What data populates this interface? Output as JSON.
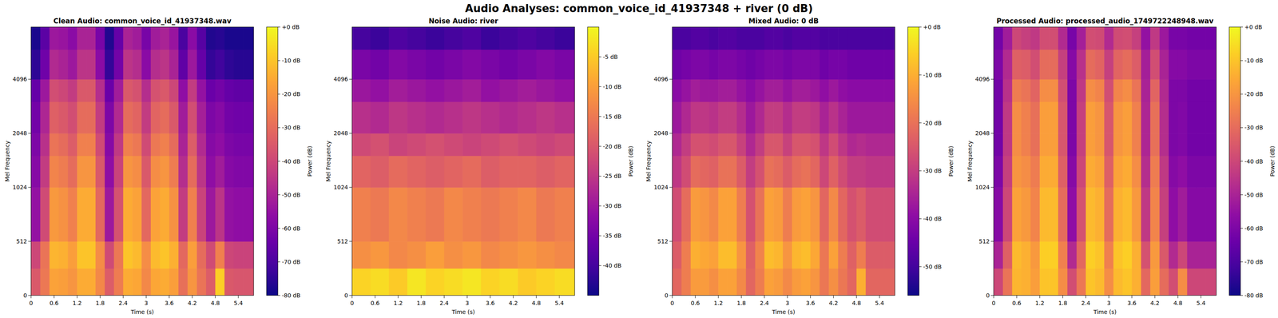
{
  "title": "Audio Analyses: common_voice_id_41937348 + river (0 dB)",
  "chart_data": [
    {
      "type": "heatmap",
      "title": "Clean Audio: common_voice_id_41937348.wav",
      "x_label": "Time (s)",
      "y_label": "Mel Frequency",
      "xlim": [
        0,
        5.8
      ],
      "xticks": [
        0,
        0.6,
        1.2,
        1.8,
        2.4,
        3,
        3.6,
        4.2,
        4.8,
        5.4
      ],
      "ylim": [
        0,
        8000
      ],
      "yticks": [
        0,
        512,
        1024,
        2048,
        4096
      ],
      "log": "y",
      "x_bins": [
        0,
        0.24,
        0.48,
        0.72,
        0.96,
        1.2,
        1.44,
        1.68,
        1.92,
        2.16,
        2.4,
        2.64,
        2.88,
        3.12,
        3.36,
        3.6,
        3.84,
        4.08,
        4.32,
        4.56,
        4.8,
        5.04,
        5.28,
        5.52,
        5.8
      ],
      "y_bins": [
        0,
        256,
        512,
        1024,
        1536,
        2048,
        3072,
        4096,
        6000,
        8000
      ],
      "cells": [
        [
          -35,
          -27,
          -17,
          -18,
          -20,
          -15,
          -15,
          -23,
          -34,
          -26,
          -15,
          -16,
          -23,
          -16,
          -15,
          -18,
          -29,
          -20,
          -28,
          -34,
          -8,
          -35,
          -36,
          -36
        ],
        [
          -40,
          -28,
          -13,
          -14,
          -18,
          -10,
          -10,
          -22,
          -39,
          -27,
          -10,
          -12,
          -22,
          -12,
          -10,
          -14,
          -31,
          -18,
          -30,
          -39,
          -25,
          -40,
          -41,
          -41
        ],
        [
          -55,
          -39,
          -19,
          -21,
          -25,
          -15,
          -15,
          -31,
          -53,
          -37,
          -15,
          -17,
          -31,
          -17,
          -15,
          -21,
          -43,
          -25,
          -41,
          -53,
          -45,
          -55,
          -56,
          -56
        ],
        [
          -58,
          -43,
          -24,
          -26,
          -30,
          -20,
          -20,
          -35,
          -56,
          -41,
          -20,
          -22,
          -35,
          -22,
          -20,
          -26,
          -47,
          -30,
          -45,
          -56,
          -52,
          -58,
          -59,
          -59
        ],
        [
          -60,
          -46,
          -28,
          -30,
          -34,
          -25,
          -25,
          -39,
          -58,
          -44,
          -25,
          -27,
          -39,
          -27,
          -25,
          -30,
          -50,
          -34,
          -48,
          -58,
          -56,
          -60,
          -61,
          -61
        ],
        [
          -62,
          -49,
          -33,
          -35,
          -38,
          -30,
          -30,
          -43,
          -60,
          -48,
          -30,
          -32,
          -43,
          -32,
          -30,
          -35,
          -52,
          -38,
          -51,
          -60,
          -58,
          -62,
          -63,
          -63
        ],
        [
          -65,
          -53,
          -38,
          -40,
          -43,
          -35,
          -35,
          -47,
          -64,
          -52,
          -35,
          -37,
          -47,
          -37,
          -35,
          -40,
          -56,
          -43,
          -55,
          -64,
          -62,
          -65,
          -66,
          -66
        ],
        [
          -75,
          -63,
          -48,
          -50,
          -53,
          -45,
          -45,
          -57,
          -74,
          -62,
          -45,
          -47,
          -57,
          -47,
          -45,
          -50,
          -66,
          -53,
          -65,
          -74,
          -72,
          -75,
          -76,
          -76
        ],
        [
          -78,
          -67,
          -53,
          -54,
          -57,
          -50,
          -50,
          -61,
          -77,
          -65,
          -50,
          -52,
          -61,
          -52,
          -50,
          -54,
          -70,
          -57,
          -68,
          -77,
          -76,
          -78,
          -78,
          -78
        ]
      ],
      "colorbar": {
        "label": "Power (dB)",
        "range": [
          -80,
          0
        ],
        "ticks": [
          {
            "value": 0,
            "label": "+0 dB"
          },
          {
            "value": -10,
            "label": "-10 dB"
          },
          {
            "value": -20,
            "label": "-20 dB"
          },
          {
            "value": -30,
            "label": "-30 dB"
          },
          {
            "value": -40,
            "label": "-40 dB"
          },
          {
            "value": -50,
            "label": "-50 dB"
          },
          {
            "value": -60,
            "label": "-60 dB"
          },
          {
            "value": -70,
            "label": "-70 dB"
          },
          {
            "value": -80,
            "label": "-80 dB"
          }
        ]
      }
    },
    {
      "type": "heatmap",
      "title": "Noise Audio: river",
      "x_label": "Time (s)",
      "y_label": "Mel Frequency",
      "xlim": [
        0,
        5.8
      ],
      "xticks": [
        0,
        0.6,
        1.2,
        1.8,
        2.4,
        3,
        3.6,
        4.2,
        4.8,
        5.4
      ],
      "ylim": [
        0,
        8000
      ],
      "yticks": [
        0,
        512,
        1024,
        2048,
        4096
      ],
      "log": "y",
      "x_bins": [
        0,
        0.48,
        0.96,
        1.44,
        1.92,
        2.4,
        2.88,
        3.36,
        3.84,
        4.32,
        4.8,
        5.28,
        5.8
      ],
      "y_bins": [
        0,
        256,
        512,
        1024,
        1536,
        2048,
        3072,
        4096,
        6000,
        8000
      ],
      "cells": [
        [
          -4,
          -3,
          -5,
          -2,
          -4,
          -3,
          -2,
          -4,
          -3,
          -5,
          -4,
          -3
        ],
        [
          -12,
          -11,
          -13,
          -12,
          -10,
          -12,
          -11,
          -13,
          -12,
          -11,
          -12,
          -13
        ],
        [
          -14,
          -15,
          -13,
          -14,
          -15,
          -13,
          -14,
          -15,
          -14,
          -13,
          -15,
          -14
        ],
        [
          -18,
          -19,
          -17,
          -18,
          -19,
          -18,
          -17,
          -19,
          -18,
          -18,
          -19,
          -18
        ],
        [
          -22,
          -21,
          -23,
          -22,
          -21,
          -22,
          -23,
          -22,
          -21,
          -22,
          -23,
          -22
        ],
        [
          -26,
          -27,
          -25,
          -26,
          -27,
          -26,
          -25,
          -26,
          -27,
          -26,
          -25,
          -26
        ],
        [
          -30,
          -31,
          -29,
          -30,
          -31,
          -30,
          -29,
          -31,
          -30,
          -29,
          -30,
          -31
        ],
        [
          -34,
          -35,
          -33,
          -34,
          -35,
          -34,
          -33,
          -34,
          -35,
          -34,
          -33,
          -34
        ],
        [
          -40,
          -41,
          -39,
          -40,
          -41,
          -40,
          -39,
          -41,
          -40,
          -39,
          -40,
          -41
        ]
      ],
      "colorbar": {
        "label": "Power (dB)",
        "range": [
          -45,
          0
        ],
        "ticks": [
          {
            "value": -5,
            "label": "-5 dB"
          },
          {
            "value": -10,
            "label": "-10 dB"
          },
          {
            "value": -15,
            "label": "-15 dB"
          },
          {
            "value": -20,
            "label": "-20 dB"
          },
          {
            "value": -25,
            "label": "-25 dB"
          },
          {
            "value": -30,
            "label": "-30 dB"
          },
          {
            "value": -35,
            "label": "-35 dB"
          },
          {
            "value": -40,
            "label": "-40 dB"
          }
        ]
      }
    },
    {
      "type": "heatmap",
      "title": "Mixed Audio: 0 dB",
      "x_label": "Time (s)",
      "y_label": "Mel Frequency",
      "xlim": [
        0,
        5.8
      ],
      "xticks": [
        0,
        0.6,
        1.2,
        1.8,
        2.4,
        3,
        3.6,
        4.2,
        4.8,
        5.4
      ],
      "ylim": [
        0,
        8000
      ],
      "yticks": [
        0,
        512,
        1024,
        2048,
        4096
      ],
      "log": "y",
      "x_bins": [
        0,
        0.24,
        0.48,
        0.72,
        0.96,
        1.2,
        1.44,
        1.68,
        1.92,
        2.16,
        2.4,
        2.64,
        2.88,
        3.12,
        3.36,
        3.6,
        3.84,
        4.08,
        4.32,
        4.56,
        4.8,
        5.04,
        5.28,
        5.52,
        5.8
      ],
      "y_bins": [
        0,
        256,
        512,
        1024,
        1536,
        2048,
        3072,
        4096,
        6000,
        8000
      ],
      "cells": [
        [
          -22,
          -18,
          -13,
          -13,
          -15,
          -12,
          -12,
          -16,
          -22,
          -18,
          -12,
          -13,
          -16,
          -13,
          -12,
          -14,
          -19,
          -15,
          -19,
          -22,
          -10,
          -22,
          -22,
          -22
        ],
        [
          -24,
          -18,
          -10,
          -11,
          -12,
          -8,
          -8,
          -14,
          -23,
          -17,
          -8,
          -9,
          -14,
          -9,
          -8,
          -11,
          -19,
          -12,
          -18,
          -23,
          -18,
          -24,
          -24,
          -24
        ],
        [
          -27,
          -21,
          -13,
          -14,
          -16,
          -12,
          -12,
          -18,
          -26,
          -20,
          -12,
          -13,
          -18,
          -13,
          -12,
          -14,
          -22,
          -16,
          -22,
          -26,
          -24,
          -27,
          -27,
          -27
        ],
        [
          -31,
          -27,
          -21,
          -22,
          -23,
          -20,
          -20,
          -24,
          -30,
          -26,
          -20,
          -21,
          -24,
          -21,
          -20,
          -22,
          -28,
          -23,
          -27,
          -30,
          -30,
          -31,
          -31,
          -31
        ],
        [
          -34,
          -30,
          -26,
          -26,
          -27,
          -25,
          -25,
          -29,
          -34,
          -30,
          -25,
          -25,
          -29,
          -25,
          -25,
          -26,
          -31,
          -27,
          -31,
          -34,
          -33,
          -34,
          -34,
          -34
        ],
        [
          -37,
          -34,
          -31,
          -31,
          -32,
          -30,
          -30,
          -33,
          -37,
          -34,
          -30,
          -30,
          -33,
          -30,
          -30,
          -31,
          -35,
          -32,
          -35,
          -37,
          -37,
          -37,
          -37,
          -37
        ],
        [
          -40,
          -38,
          -36,
          -37,
          -37,
          -36,
          -36,
          -38,
          -40,
          -38,
          -36,
          -36,
          -38,
          -36,
          -36,
          -37,
          -39,
          -37,
          -39,
          -40,
          -40,
          -40,
          -40,
          -40
        ],
        [
          -44,
          -43,
          -42,
          -42,
          -43,
          -42,
          -42,
          -43,
          -44,
          -43,
          -42,
          -42,
          -43,
          -42,
          -42,
          -42,
          -44,
          -43,
          -43,
          -44,
          -44,
          -44,
          -44,
          -44
        ],
        [
          -49,
          -49,
          -48,
          -48,
          -49,
          -48,
          -48,
          -49,
          -49,
          -49,
          -48,
          -48,
          -49,
          -48,
          -48,
          -48,
          -49,
          -49,
          -49,
          -49,
          -49,
          -49,
          -49,
          -49
        ]
      ],
      "colorbar": {
        "label": "Power (dB)",
        "range": [
          -56,
          0
        ],
        "ticks": [
          {
            "value": 0,
            "label": "+0 dB"
          },
          {
            "value": -10,
            "label": "-10 dB"
          },
          {
            "value": -20,
            "label": "-20 dB"
          },
          {
            "value": -30,
            "label": "-30 dB"
          },
          {
            "value": -40,
            "label": "-40 dB"
          },
          {
            "value": -50,
            "label": "-50 dB"
          }
        ]
      }
    },
    {
      "type": "heatmap",
      "title": "Processed Audio: processed_audio_1749722248948.wav",
      "x_label": "Time (s)",
      "y_label": "Mel Frequency",
      "xlim": [
        0,
        5.8
      ],
      "xticks": [
        0,
        0.6,
        1.2,
        1.8,
        2.4,
        3,
        3.6,
        4.2,
        4.8,
        5.4
      ],
      "ylim": [
        0,
        8000
      ],
      "yticks": [
        0,
        512,
        1024,
        2048,
        4096
      ],
      "log": "y",
      "x_bins": [
        0,
        0.24,
        0.48,
        0.72,
        0.96,
        1.2,
        1.44,
        1.68,
        1.92,
        2.16,
        2.4,
        2.64,
        2.88,
        3.12,
        3.36,
        3.6,
        3.84,
        4.08,
        4.32,
        4.56,
        4.8,
        5.04,
        5.28,
        5.52,
        5.8
      ],
      "y_bins": [
        0,
        256,
        512,
        1024,
        1536,
        2048,
        3072,
        4096,
        6000,
        8000
      ],
      "cells": [
        [
          -40,
          -28,
          -13,
          -14,
          -18,
          -10,
          -10,
          -22,
          -38,
          -27,
          -10,
          -12,
          -22,
          -12,
          -10,
          -14,
          -31,
          -18,
          -30,
          -38,
          -22,
          -40,
          -40,
          -40
        ],
        [
          -50,
          -33,
          -12,
          -14,
          -19,
          -8,
          -8,
          -25,
          -48,
          -31,
          -8,
          -10,
          -25,
          -10,
          -8,
          -14,
          -37,
          -19,
          -35,
          -48,
          -40,
          -50,
          -50,
          -50
        ],
        [
          -58,
          -40,
          -17,
          -19,
          -24,
          -12,
          -12,
          -30,
          -56,
          -37,
          -12,
          -14,
          -30,
          -14,
          -12,
          -19,
          -44,
          -24,
          -42,
          -56,
          -52,
          -58,
          -58,
          -58
        ],
        [
          -60,
          -42,
          -20,
          -22,
          -26,
          -15,
          -15,
          -33,
          -58,
          -40,
          -15,
          -17,
          -33,
          -17,
          -15,
          -22,
          -47,
          -26,
          -44,
          -58,
          -56,
          -60,
          -60,
          -60
        ],
        [
          -62,
          -44,
          -22,
          -25,
          -29,
          -18,
          -18,
          -36,
          -60,
          -42,
          -18,
          -20,
          -36,
          -20,
          -18,
          -25,
          -49,
          -29,
          -47,
          -60,
          -59,
          -62,
          -62,
          -62
        ],
        [
          -62,
          -44,
          -22,
          -25,
          -29,
          -18,
          -18,
          -36,
          -60,
          -42,
          -18,
          -20,
          -36,
          -20,
          -18,
          -25,
          -49,
          -29,
          -47,
          -60,
          -59,
          -62,
          -62,
          -62
        ],
        [
          -62,
          -46,
          -26,
          -28,
          -32,
          -22,
          -22,
          -38,
          -60,
          -44,
          -22,
          -24,
          -38,
          -24,
          -22,
          -28,
          -50,
          -32,
          -48,
          -60,
          -60,
          -62,
          -62,
          -62
        ],
        [
          -60,
          -48,
          -33,
          -34,
          -38,
          -30,
          -30,
          -42,
          -58,
          -46,
          -30,
          -32,
          -42,
          -32,
          -30,
          -34,
          -51,
          -38,
          -50,
          -58,
          -58,
          -60,
          -60,
          -60
        ],
        [
          -62,
          -52,
          -40,
          -42,
          -44,
          -38,
          -38,
          -48,
          -61,
          -51,
          -38,
          -39,
          -48,
          -39,
          -38,
          -42,
          -55,
          -44,
          -53,
          -61,
          -61,
          -62,
          -62,
          -62
        ]
      ],
      "colorbar": {
        "label": "Power (dB)",
        "range": [
          -80,
          0
        ],
        "ticks": [
          {
            "value": 0,
            "label": "+0 dB"
          },
          {
            "value": -10,
            "label": "-10 dB"
          },
          {
            "value": -20,
            "label": "-20 dB"
          },
          {
            "value": -30,
            "label": "-30 dB"
          },
          {
            "value": -40,
            "label": "-40 dB"
          },
          {
            "value": -50,
            "label": "-50 dB"
          },
          {
            "value": -60,
            "label": "-60 dB"
          },
          {
            "value": -70,
            "label": "-70 dB"
          },
          {
            "value": -80,
            "label": "-80 dB"
          }
        ]
      }
    }
  ]
}
